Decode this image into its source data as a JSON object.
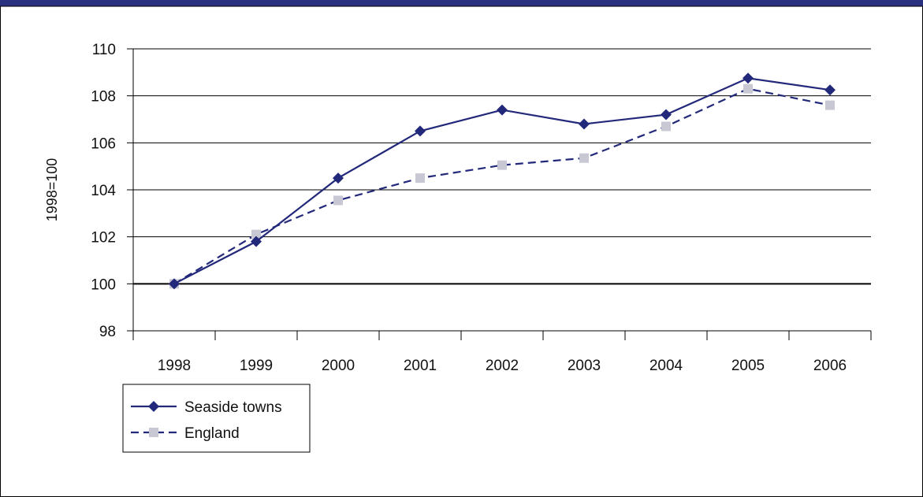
{
  "chart_data": {
    "type": "line",
    "title": "",
    "xlabel": "",
    "ylabel": "1998=100",
    "x": [
      "1998",
      "1999",
      "2000",
      "2001",
      "2002",
      "2003",
      "2004",
      "2005",
      "2006"
    ],
    "ylim": [
      98,
      110
    ],
    "yticks": [
      98,
      100,
      102,
      104,
      106,
      108,
      110
    ],
    "reference_line": 100,
    "grid": true,
    "legend_position": "bottom-left",
    "series": [
      {
        "name": "Seaside towns",
        "values": [
          100.0,
          101.8,
          104.5,
          106.5,
          107.4,
          106.8,
          107.2,
          108.75,
          108.25
        ],
        "color": "#23297a",
        "line_style": "solid",
        "marker": "diamond"
      },
      {
        "name": "England",
        "values": [
          100.0,
          102.1,
          103.55,
          104.5,
          105.05,
          105.35,
          106.7,
          108.3,
          107.6
        ],
        "color": "#23297a",
        "marker_color": "#c8c8d4",
        "line_style": "dashed",
        "marker": "square"
      }
    ]
  },
  "colors": {
    "header_bar": "#2a3080",
    "gridline": "#000000",
    "frame_border": "#000000"
  }
}
